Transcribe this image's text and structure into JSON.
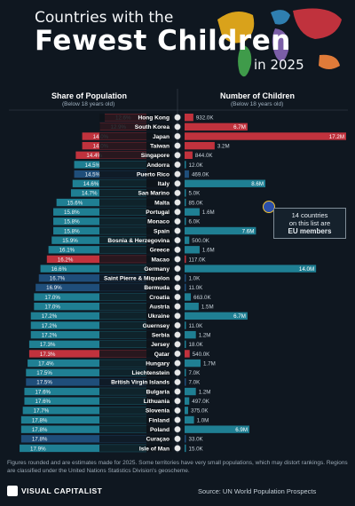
{
  "title": {
    "line1": "Countries with the",
    "line2": "Fewest Children",
    "line3": "in 2025"
  },
  "headers": {
    "left_title": "Share of Population",
    "left_sub": "(Below 18 years old)",
    "right_title": "Number of Children",
    "right_sub": "(Below 18 years old)"
  },
  "callout": {
    "line1": "14 countries",
    "line2": "on this list are",
    "line3": "EU members"
  },
  "footnote": "Figures rounded and are estimates made for 2025. Some territories have very small populations, which may distort rankings. Regions are classified under the United Nations Statistics Division's geoscheme.",
  "brand": "VISUAL CAPITALIST",
  "source": "Source:  UN World Population Prospects",
  "colors": {
    "asia": "#c0323d",
    "europe": "#1f7f93",
    "americas": "#1f4e7a",
    "label": "#0d1319",
    "eu_flag": "#2b4fa8"
  },
  "chart_data": {
    "type": "bar",
    "categories": [
      "Hong Kong",
      "South Korea",
      "Japan",
      "Taiwan",
      "Singapore",
      "Andorra",
      "Puerto Rico",
      "Italy",
      "San Marino",
      "Malta",
      "Portugal",
      "Monaco",
      "Spain",
      "Bosnia & Herzegovina",
      "Greece",
      "Macao",
      "Germany",
      "Saint Pierre & Miquelon",
      "Bermuda",
      "Croatia",
      "Austria",
      "Ukraine",
      "Guernsey",
      "Serbia",
      "Jersey",
      "Qatar",
      "Hungary",
      "Liechtenstein",
      "British Virgin Islands",
      "Bulgaria",
      "Lithuania",
      "Slovenia",
      "Finland",
      "Poland",
      "Curaçao",
      "Isle of Man"
    ],
    "region": [
      "asia",
      "asia",
      "asia",
      "asia",
      "asia",
      "europe",
      "americas",
      "europe",
      "europe",
      "europe",
      "europe",
      "europe",
      "europe",
      "europe",
      "europe",
      "asia",
      "europe",
      "americas",
      "americas",
      "europe",
      "europe",
      "europe",
      "europe",
      "europe",
      "europe",
      "asia",
      "europe",
      "europe",
      "americas",
      "europe",
      "europe",
      "europe",
      "europe",
      "europe",
      "americas",
      "europe"
    ],
    "share_labels": [
      "12.6%",
      "12.9%",
      "14.0%",
      "14.0%",
      "14.4%",
      "14.5%",
      "14.5%",
      "14.6%",
      "14.7%",
      "15.6%",
      "15.8%",
      "15.8%",
      "15.8%",
      "15.9%",
      "16.1%",
      "16.2%",
      "16.6%",
      "16.7%",
      "16.9%",
      "17.0%",
      "17.0%",
      "17.2%",
      "17.2%",
      "17.2%",
      "17.3%",
      "17.3%",
      "17.4%",
      "17.5%",
      "17.5%",
      "17.6%",
      "17.6%",
      "17.7%",
      "17.8%",
      "17.8%",
      "17.8%",
      "17.9%"
    ],
    "share_values": [
      12.6,
      12.9,
      14.0,
      14.0,
      14.4,
      14.5,
      14.5,
      14.6,
      14.7,
      15.6,
      15.8,
      15.8,
      15.8,
      15.9,
      16.1,
      16.2,
      16.6,
      16.7,
      16.9,
      17.0,
      17.0,
      17.2,
      17.2,
      17.2,
      17.3,
      17.3,
      17.4,
      17.5,
      17.5,
      17.6,
      17.6,
      17.7,
      17.8,
      17.8,
      17.8,
      17.9
    ],
    "children_labels": [
      "932.0K",
      "6.7M",
      "17.2M",
      "3.2M",
      "844.0K",
      "12.0K",
      "469.0K",
      "8.6M",
      "5.0K",
      "85.0K",
      "1.6M",
      "6.0K",
      "7.6M",
      "500.0K",
      "1.6M",
      "117.0K",
      "14.0M",
      "1.0K",
      "11.0K",
      "663.0K",
      "1.5M",
      "6.7M",
      "11.0K",
      "1.2M",
      "18.0K",
      "540.0K",
      "1.7M",
      "7.0K",
      "7.0K",
      "1.2M",
      "497.0K",
      "375.0K",
      "1.0M",
      "6.9M",
      "33.0K",
      "15.0K"
    ],
    "children_values": [
      0.932,
      6.7,
      17.2,
      3.2,
      0.844,
      0.012,
      0.469,
      8.6,
      0.005,
      0.085,
      1.6,
      0.006,
      7.6,
      0.5,
      1.6,
      0.117,
      14.0,
      0.001,
      0.011,
      0.663,
      1.5,
      6.7,
      0.011,
      1.2,
      0.018,
      0.54,
      1.7,
      0.007,
      0.007,
      1.2,
      0.497,
      0.375,
      1.0,
      6.9,
      0.033,
      0.015
    ],
    "children_unit": "millions",
    "legend": "none"
  }
}
